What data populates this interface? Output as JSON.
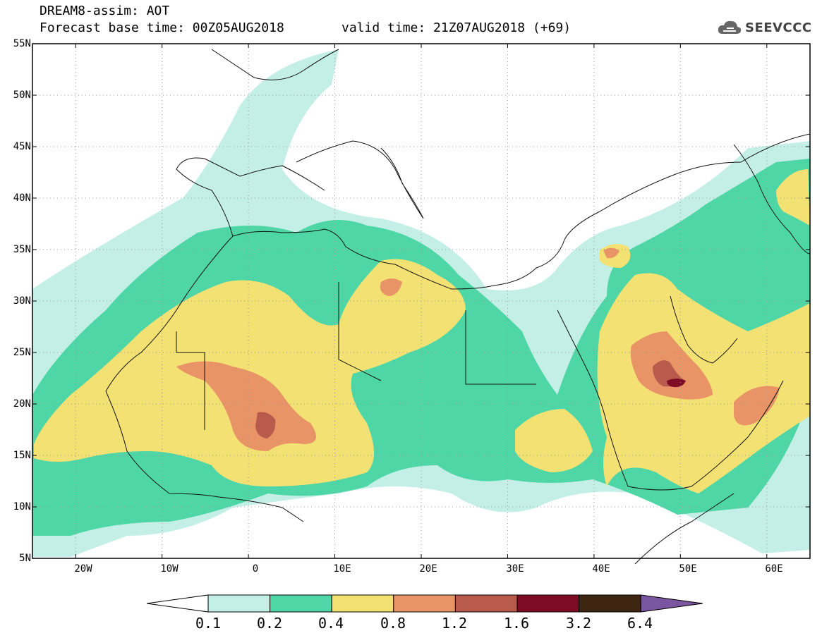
{
  "header": {
    "line1": "DREAM8-assim: AOT",
    "line2": "Forecast base time: 00Z05AUG2018",
    "valid": "valid time: 21Z07AUG2018 (+69)"
  },
  "logo": {
    "text": "SEEVCCC",
    "icon": "cloud-icon"
  },
  "map": {
    "lon_range": [
      -25,
      65
    ],
    "lat_range": [
      5,
      55
    ],
    "lat_ticks": [
      "55N",
      "50N",
      "45N",
      "40N",
      "35N",
      "30N",
      "25N",
      "20N",
      "15N",
      "10N",
      "5N"
    ],
    "lon_ticks": [
      "20W",
      "10W",
      "0",
      "10E",
      "20E",
      "30E",
      "40E",
      "50E",
      "60E"
    ],
    "gridlines": "dotted"
  },
  "colorbar": {
    "labels": [
      "0.1",
      "0.2",
      "0.4",
      "0.8",
      "1.2",
      "1.6",
      "3.2",
      "6.4"
    ],
    "colors": [
      "#c4efe6",
      "#4fd6a6",
      "#f3e174",
      "#e89466",
      "#b85a4c",
      "#7e0c24",
      "#3e2612",
      "#7a56a0"
    ]
  }
}
